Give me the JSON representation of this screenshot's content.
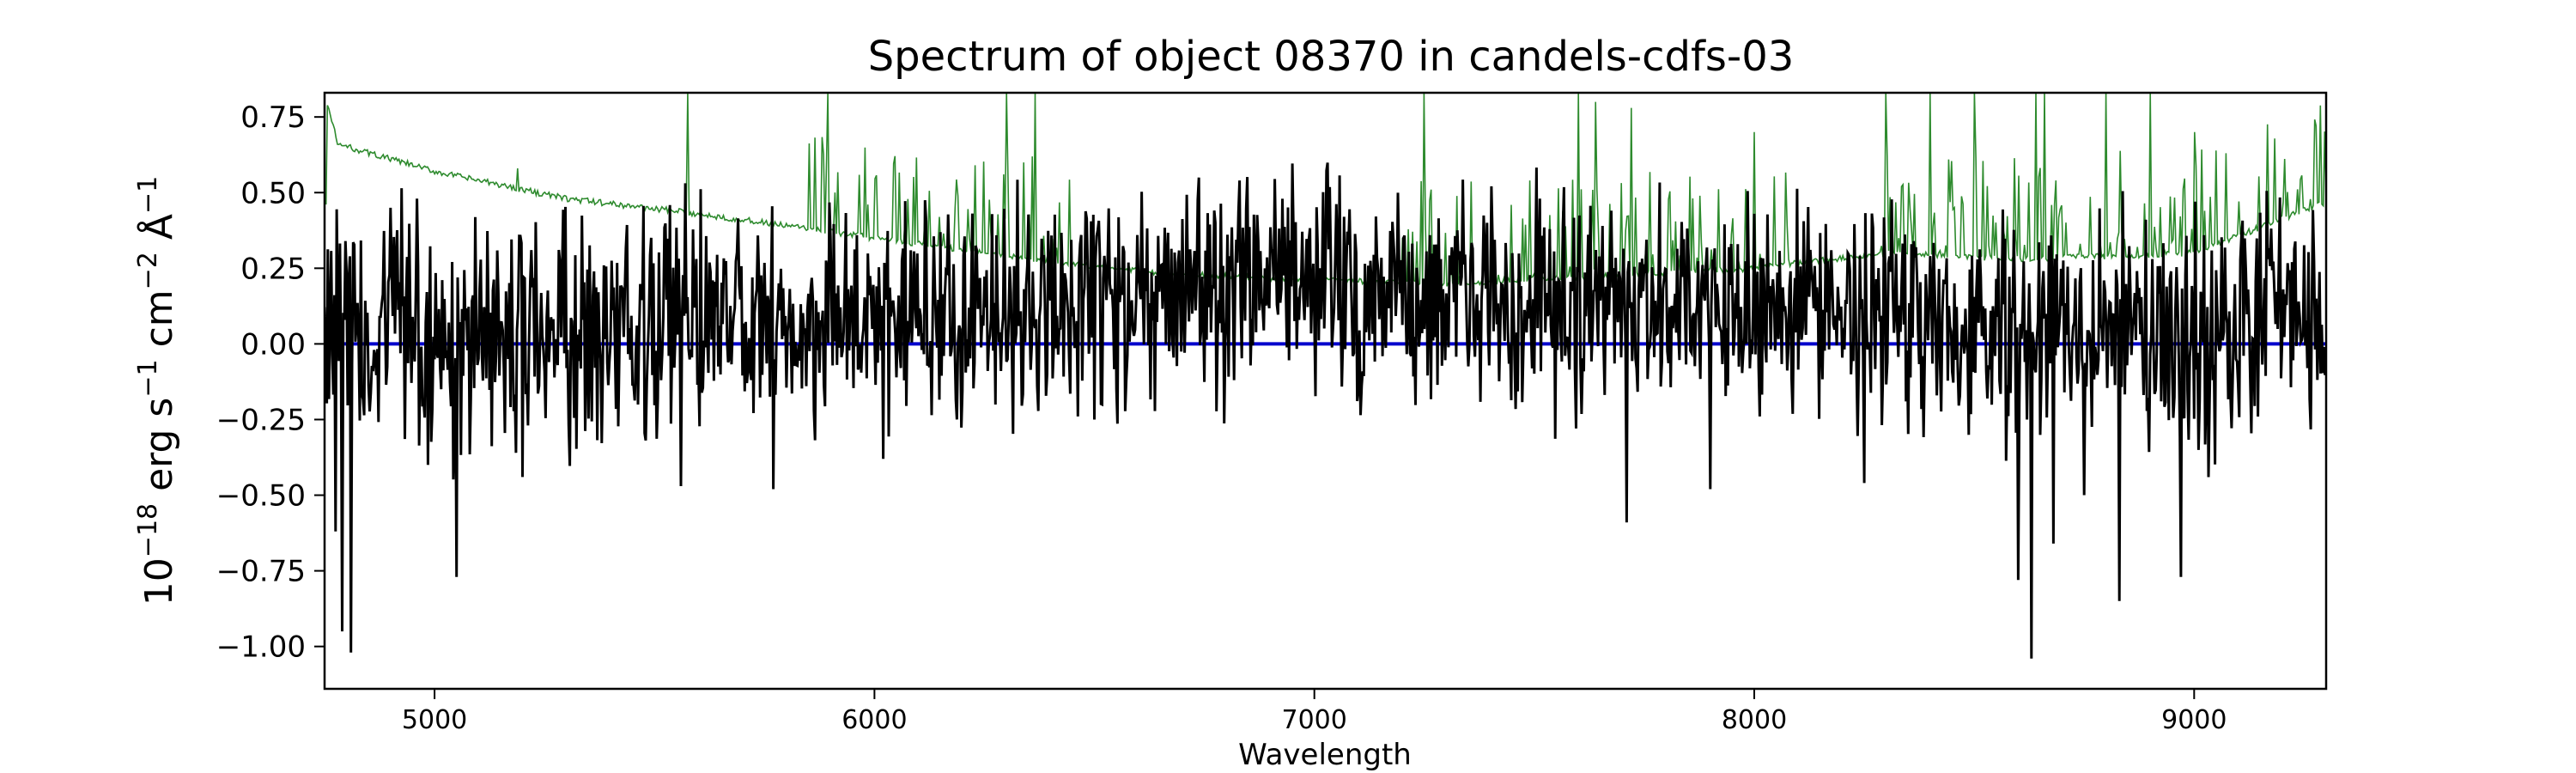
{
  "chart_data": {
    "type": "line",
    "title": "Spectrum of object 08370 in candels-cdfs-03",
    "xlabel": "Wavelength",
    "ylabel_base": "10",
    "ylabel_exp": "−18",
    "ylabel_units": [
      {
        "t": " erg s"
      },
      {
        "t": "−1",
        "sup": true
      },
      {
        "t": " cm"
      },
      {
        "t": "−2",
        "sup": true
      },
      {
        "t": " Å"
      },
      {
        "t": "−1",
        "sup": true
      }
    ],
    "xlim": [
      4750,
      9300
    ],
    "ylim": [
      -1.14,
      0.83
    ],
    "xticks": [
      5000,
      6000,
      7000,
      8000,
      9000
    ],
    "xtick_labels": [
      "5000",
      "6000",
      "7000",
      "8000",
      "9000"
    ],
    "yticks": [
      -1.0,
      -0.75,
      -0.5,
      -0.25,
      0.0,
      0.25,
      0.5,
      0.75
    ],
    "ytick_labels": [
      "−1.00",
      "−0.75",
      "−0.50",
      "−0.25",
      "0.00",
      "0.25",
      "0.50",
      "0.75"
    ],
    "grid": false,
    "series": [
      {
        "role": "flux",
        "color": "#000000",
        "anchors": [
          [
            4750,
            0.05
          ],
          [
            5000,
            0.05
          ],
          [
            5500,
            0.08
          ],
          [
            6000,
            0.08
          ],
          [
            6500,
            0.16
          ],
          [
            7000,
            0.2
          ],
          [
            7500,
            0.12
          ],
          [
            8000,
            0.1
          ],
          [
            8500,
            0.05
          ],
          [
            9000,
            0.05
          ],
          [
            9300,
            0.05
          ]
        ],
        "spikes": [
          [
            4790,
            -0.95
          ],
          [
            4810,
            -1.02
          ],
          [
            4775,
            -0.62
          ],
          [
            4900,
            0.45
          ],
          [
            4960,
            0.48
          ],
          [
            4985,
            -0.4
          ],
          [
            5050,
            -0.77
          ],
          [
            5200,
            -0.44
          ],
          [
            5560,
            -0.47
          ],
          [
            5770,
            -0.48
          ],
          [
            6020,
            -0.38
          ],
          [
            6500,
            -0.25
          ],
          [
            6830,
            0.54
          ],
          [
            7100,
            -0.15
          ],
          [
            7450,
            0.3
          ],
          [
            7710,
            -0.59
          ],
          [
            7900,
            -0.48
          ],
          [
            8250,
            -0.46
          ],
          [
            8600,
            -0.78
          ],
          [
            8630,
            -1.04
          ],
          [
            8680,
            -0.66
          ],
          [
            8750,
            -0.5
          ],
          [
            8830,
            -0.85
          ],
          [
            8970,
            -0.77
          ]
        ]
      },
      {
        "role": "error",
        "color": "#2e8b2e",
        "anchors": [
          [
            4755,
            0.8
          ],
          [
            4780,
            0.66
          ],
          [
            5000,
            0.57
          ],
          [
            5300,
            0.48
          ],
          [
            5600,
            0.43
          ],
          [
            6000,
            0.35
          ],
          [
            6300,
            0.29
          ],
          [
            6600,
            0.24
          ],
          [
            7000,
            0.21
          ],
          [
            7300,
            0.2
          ],
          [
            7600,
            0.22
          ],
          [
            8000,
            0.25
          ],
          [
            8300,
            0.3
          ],
          [
            8600,
            0.28
          ],
          [
            9000,
            0.3
          ],
          [
            9300,
            0.47
          ]
        ],
        "spikes": [
          [
            5190,
            0.58
          ],
          [
            5575,
            0.83
          ],
          [
            5890,
            0.58
          ],
          [
            5895,
            0.83
          ],
          [
            6300,
            0.83
          ],
          [
            6365,
            0.83
          ],
          [
            7250,
            0.83
          ],
          [
            7600,
            0.83
          ],
          [
            7640,
            0.8
          ],
          [
            7720,
            0.78
          ],
          [
            8000,
            0.7
          ],
          [
            8300,
            0.83
          ],
          [
            8400,
            0.83
          ],
          [
            8500,
            0.83
          ],
          [
            8640,
            0.83
          ],
          [
            8660,
            0.83
          ],
          [
            8800,
            0.83
          ],
          [
            8900,
            0.83
          ],
          [
            9000,
            0.7
          ]
        ]
      },
      {
        "role": "zero-model",
        "color": "#0000cc",
        "values_x": [
          4750,
          9300
        ],
        "values_y": [
          0.0,
          0.0
        ]
      }
    ]
  }
}
